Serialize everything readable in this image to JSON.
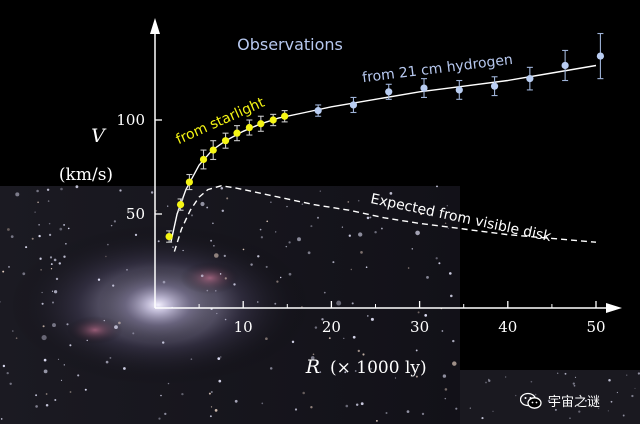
{
  "chart_data": {
    "type": "scatter",
    "x_axis": {
      "label_var": "R",
      "label_unit": "(× 1000 ly)",
      "min": 0,
      "max": 52,
      "ticks": [
        10,
        20,
        30,
        40,
        50
      ]
    },
    "y_axis": {
      "label_var": "V",
      "label_unit": "(km/s)",
      "min": 0,
      "max": 150,
      "ticks": [
        50,
        100
      ]
    },
    "annotations": {
      "title": "Observations",
      "starlight": "from starlight",
      "hydrogen": "from 21 cm hydrogen",
      "expected": "Expected from visible disk"
    },
    "series": [
      {
        "name": "from starlight",
        "color": "#f5f514",
        "points": [
          {
            "x": 1.6,
            "y": 38,
            "err": 3
          },
          {
            "x": 2.9,
            "y": 55,
            "err": 3
          },
          {
            "x": 3.9,
            "y": 67,
            "err": 4
          },
          {
            "x": 5.5,
            "y": 79,
            "err": 5
          },
          {
            "x": 6.6,
            "y": 84,
            "err": 5
          },
          {
            "x": 8.0,
            "y": 89,
            "err": 4
          },
          {
            "x": 9.3,
            "y": 93,
            "err": 4
          },
          {
            "x": 10.7,
            "y": 96,
            "err": 4
          },
          {
            "x": 12.0,
            "y": 98,
            "err": 4
          },
          {
            "x": 13.4,
            "y": 100,
            "err": 3
          },
          {
            "x": 14.7,
            "y": 102,
            "err": 3
          }
        ]
      },
      {
        "name": "from 21 cm hydrogen",
        "color": "#b9cdf2",
        "points": [
          {
            "x": 18.5,
            "y": 105,
            "err": 3
          },
          {
            "x": 22.5,
            "y": 108,
            "err": 4
          },
          {
            "x": 26.5,
            "y": 115,
            "err": 4
          },
          {
            "x": 30.5,
            "y": 117,
            "err": 5
          },
          {
            "x": 34.5,
            "y": 116,
            "err": 5
          },
          {
            "x": 38.5,
            "y": 118,
            "err": 5
          },
          {
            "x": 42.5,
            "y": 122,
            "err": 6
          },
          {
            "x": 46.5,
            "y": 129,
            "err": 8
          },
          {
            "x": 50.5,
            "y": 134,
            "err": 12
          }
        ]
      }
    ],
    "fit_curve": [
      [
        1.8,
        35
      ],
      [
        2.5,
        50
      ],
      [
        3.5,
        63
      ],
      [
        5,
        76
      ],
      [
        6.5,
        84
      ],
      [
        8,
        89
      ],
      [
        10,
        94
      ],
      [
        12,
        98
      ],
      [
        14,
        101
      ],
      [
        17,
        104
      ],
      [
        20,
        107
      ],
      [
        25,
        111
      ],
      [
        30,
        115
      ],
      [
        35,
        118
      ],
      [
        40,
        121
      ],
      [
        45,
        125
      ],
      [
        50,
        129
      ]
    ],
    "expected_curve": [
      [
        2.2,
        30
      ],
      [
        3,
        42
      ],
      [
        4,
        52
      ],
      [
        5,
        59
      ],
      [
        6,
        63
      ],
      [
        7.5,
        65
      ],
      [
        9,
        64
      ],
      [
        11,
        62
      ],
      [
        14,
        59
      ],
      [
        18,
        55
      ],
      [
        22,
        52
      ],
      [
        26,
        48
      ],
      [
        30,
        45
      ],
      [
        35,
        42
      ],
      [
        40,
        39
      ],
      [
        45,
        37
      ],
      [
        50,
        35
      ]
    ]
  },
  "watermark": {
    "text": "宇宙之谜",
    "icon": "wechat-icon"
  }
}
